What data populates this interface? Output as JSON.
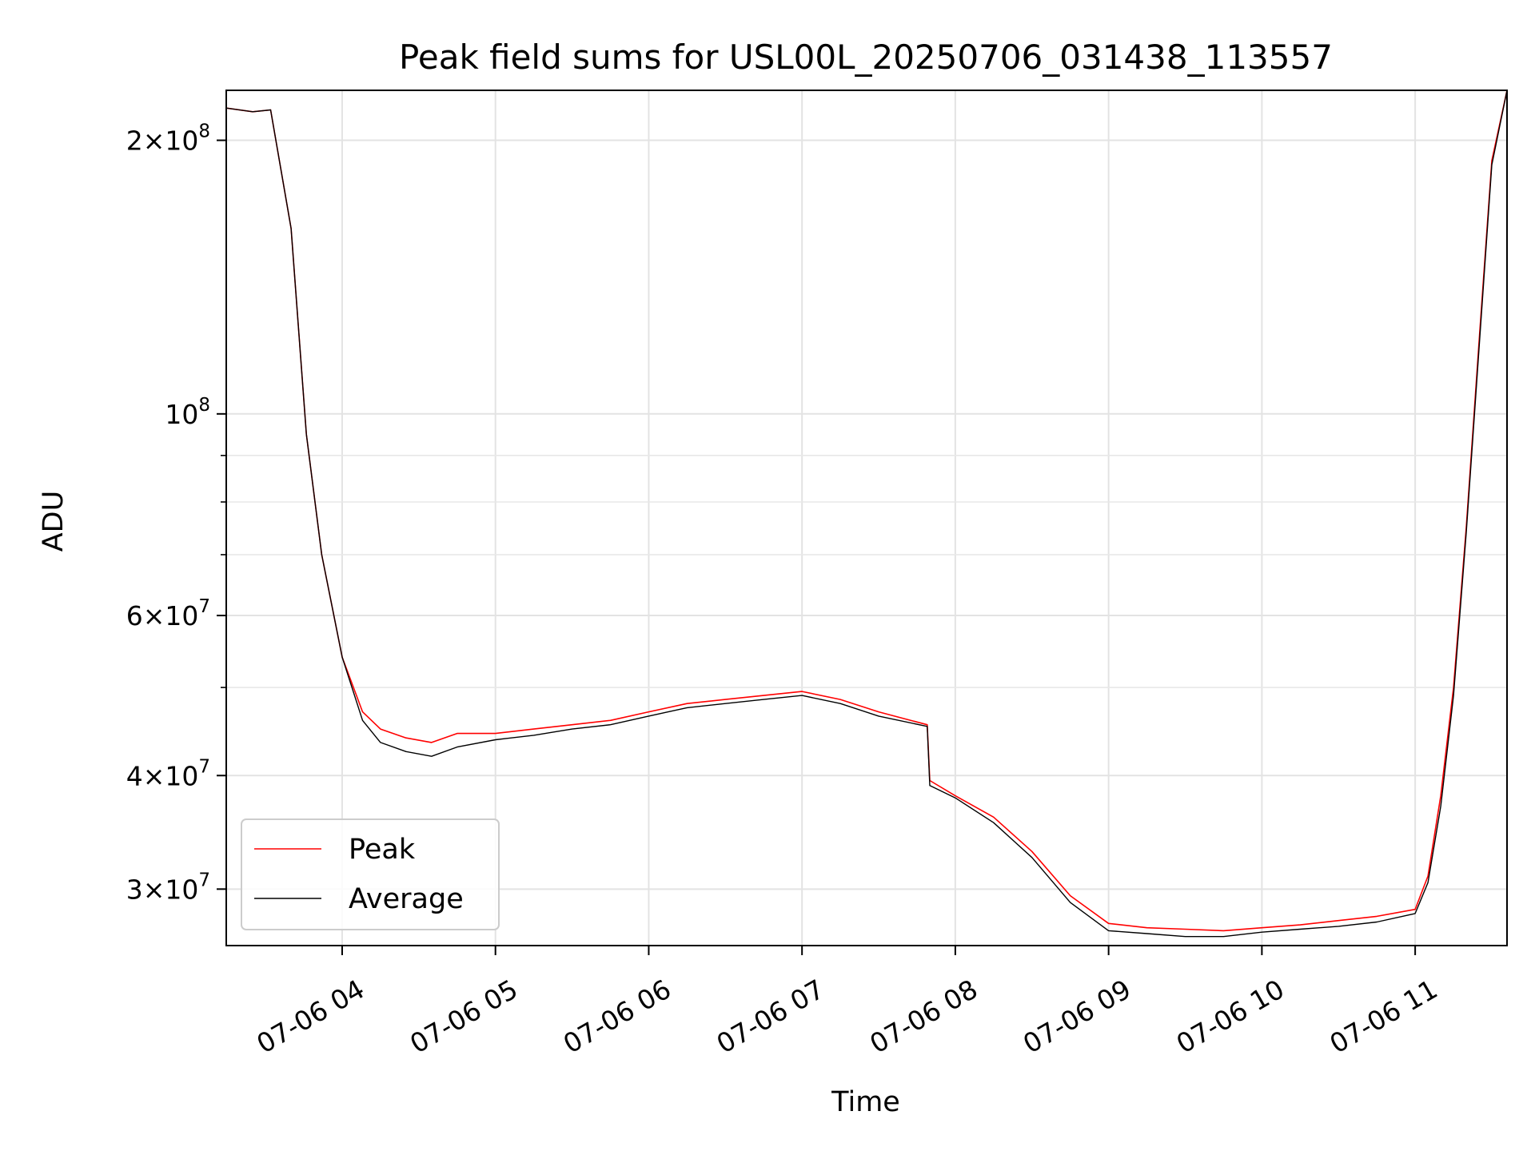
{
  "chart_data": {
    "type": "line",
    "title": "Peak field sums for USL00L_20250706_031438_113557",
    "xlabel": "Time",
    "ylabel": "ADU",
    "x_axis": "datetime",
    "xlim": [
      "2025-07-06T03:14:38",
      "2025-07-06T11:35:57"
    ],
    "y_scale": "log",
    "ylim": [
      26000000,
      227000000
    ],
    "grid": true,
    "legend_position": "lower-left",
    "x_ticks": [
      {
        "value": "2025-07-06T04:00:00",
        "label": "07-06 04"
      },
      {
        "value": "2025-07-06T05:00:00",
        "label": "07-06 05"
      },
      {
        "value": "2025-07-06T06:00:00",
        "label": "07-06 06"
      },
      {
        "value": "2025-07-06T07:00:00",
        "label": "07-06 07"
      },
      {
        "value": "2025-07-06T08:00:00",
        "label": "07-06 08"
      },
      {
        "value": "2025-07-06T09:00:00",
        "label": "07-06 09"
      },
      {
        "value": "2025-07-06T10:00:00",
        "label": "07-06 10"
      },
      {
        "value": "2025-07-06T11:00:00",
        "label": "07-06 11"
      }
    ],
    "y_ticks": [
      {
        "value": 30000000,
        "base": "3",
        "exp": "7"
      },
      {
        "value": 40000000,
        "base": "4",
        "exp": "7"
      },
      {
        "value": 60000000,
        "base": "6",
        "exp": "7"
      },
      {
        "value": 100000000,
        "base": "",
        "exp": "8"
      },
      {
        "value": 200000000,
        "base": "2",
        "exp": "8"
      }
    ],
    "y_minor_ticks": [
      50000000,
      70000000,
      80000000,
      90000000
    ],
    "series": [
      {
        "name": "Peak",
        "color": "#ff0000",
        "x": [
          "2025-07-06T03:14:38",
          "2025-07-06T03:25:00",
          "2025-07-06T03:32:00",
          "2025-07-06T03:40:00",
          "2025-07-06T03:46:00",
          "2025-07-06T03:52:00",
          "2025-07-06T04:00:00",
          "2025-07-06T04:08:00",
          "2025-07-06T04:15:00",
          "2025-07-06T04:25:00",
          "2025-07-06T04:35:00",
          "2025-07-06T04:45:00",
          "2025-07-06T05:00:00",
          "2025-07-06T05:15:00",
          "2025-07-06T05:30:00",
          "2025-07-06T05:45:00",
          "2025-07-06T06:00:00",
          "2025-07-06T06:15:00",
          "2025-07-06T06:30:00",
          "2025-07-06T06:45:00",
          "2025-07-06T07:00:00",
          "2025-07-06T07:15:00",
          "2025-07-06T07:30:00",
          "2025-07-06T07:49:00",
          "2025-07-06T07:50:00",
          "2025-07-06T08:00:00",
          "2025-07-06T08:15:00",
          "2025-07-06T08:30:00",
          "2025-07-06T08:45:00",
          "2025-07-06T09:00:00",
          "2025-07-06T09:15:00",
          "2025-07-06T09:30:00",
          "2025-07-06T09:45:00",
          "2025-07-06T10:00:00",
          "2025-07-06T10:15:00",
          "2025-07-06T10:30:00",
          "2025-07-06T10:45:00",
          "2025-07-06T11:00:00",
          "2025-07-06T11:05:00",
          "2025-07-06T11:10:00",
          "2025-07-06T11:15:00",
          "2025-07-06T11:20:00",
          "2025-07-06T11:25:00",
          "2025-07-06T11:30:00",
          "2025-07-06T11:35:57"
        ],
        "values": [
          217000000,
          215000000,
          216000000,
          160000000,
          95000000,
          70000000,
          54000000,
          47000000,
          45000000,
          44000000,
          43500000,
          44500000,
          44500000,
          45000000,
          45500000,
          46000000,
          47000000,
          48000000,
          48500000,
          49000000,
          49500000,
          48500000,
          47000000,
          45500000,
          39500000,
          38000000,
          36000000,
          33000000,
          29500000,
          27500000,
          27200000,
          27100000,
          27000000,
          27200000,
          27400000,
          27700000,
          28000000,
          28500000,
          31000000,
          38000000,
          50000000,
          75000000,
          120000000,
          190000000,
          227000000
        ]
      },
      {
        "name": "Average",
        "color": "#000000",
        "x": [
          "2025-07-06T03:14:38",
          "2025-07-06T03:25:00",
          "2025-07-06T03:32:00",
          "2025-07-06T03:40:00",
          "2025-07-06T03:46:00",
          "2025-07-06T03:52:00",
          "2025-07-06T04:00:00",
          "2025-07-06T04:08:00",
          "2025-07-06T04:15:00",
          "2025-07-06T04:25:00",
          "2025-07-06T04:35:00",
          "2025-07-06T04:45:00",
          "2025-07-06T05:00:00",
          "2025-07-06T05:15:00",
          "2025-07-06T05:30:00",
          "2025-07-06T05:45:00",
          "2025-07-06T06:00:00",
          "2025-07-06T06:15:00",
          "2025-07-06T06:30:00",
          "2025-07-06T06:45:00",
          "2025-07-06T07:00:00",
          "2025-07-06T07:15:00",
          "2025-07-06T07:30:00",
          "2025-07-06T07:49:00",
          "2025-07-06T07:50:00",
          "2025-07-06T08:00:00",
          "2025-07-06T08:15:00",
          "2025-07-06T08:30:00",
          "2025-07-06T08:45:00",
          "2025-07-06T09:00:00",
          "2025-07-06T09:15:00",
          "2025-07-06T09:30:00",
          "2025-07-06T09:45:00",
          "2025-07-06T10:00:00",
          "2025-07-06T10:15:00",
          "2025-07-06T10:30:00",
          "2025-07-06T10:45:00",
          "2025-07-06T11:00:00",
          "2025-07-06T11:05:00",
          "2025-07-06T11:10:00",
          "2025-07-06T11:15:00",
          "2025-07-06T11:20:00",
          "2025-07-06T11:25:00",
          "2025-07-06T11:30:00",
          "2025-07-06T11:35:57"
        ],
        "values": [
          217000000,
          215000000,
          216000000,
          160000000,
          95000000,
          70000000,
          54000000,
          46000000,
          43500000,
          42500000,
          42000000,
          43000000,
          43800000,
          44300000,
          45000000,
          45500000,
          46500000,
          47500000,
          48000000,
          48500000,
          49000000,
          48000000,
          46500000,
          45300000,
          39000000,
          37800000,
          35500000,
          32500000,
          29000000,
          27000000,
          26800000,
          26600000,
          26600000,
          26900000,
          27100000,
          27300000,
          27600000,
          28200000,
          30500000,
          37000000,
          49000000,
          74000000,
          118000000,
          188000000,
          227000000
        ]
      }
    ]
  }
}
